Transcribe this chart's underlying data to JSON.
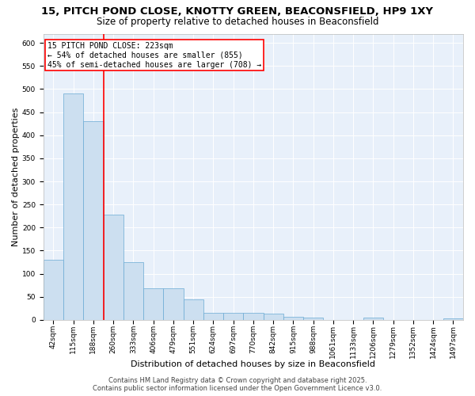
{
  "title": "15, PITCH POND CLOSE, KNOTTY GREEN, BEACONSFIELD, HP9 1XY",
  "subtitle": "Size of property relative to detached houses in Beaconsfield",
  "xlabel": "Distribution of detached houses by size in Beaconsfield",
  "ylabel": "Number of detached properties",
  "bar_labels": [
    "42sqm",
    "115sqm",
    "188sqm",
    "260sqm",
    "333sqm",
    "406sqm",
    "479sqm",
    "551sqm",
    "624sqm",
    "697sqm",
    "770sqm",
    "842sqm",
    "915sqm",
    "988sqm",
    "1061sqm",
    "1133sqm",
    "1206sqm",
    "1279sqm",
    "1352sqm",
    "1424sqm",
    "1497sqm"
  ],
  "bar_values": [
    130,
    490,
    430,
    228,
    125,
    68,
    68,
    44,
    15,
    15,
    15,
    13,
    7,
    5,
    0,
    0,
    5,
    0,
    0,
    0,
    4
  ],
  "bar_color": "#ccdff0",
  "bar_edge_color": "#6aaad4",
  "red_line_x": 2.5,
  "annotation_text": "15 PITCH POND CLOSE: 223sqm\n← 54% of detached houses are smaller (855)\n45% of semi-detached houses are larger (708) →",
  "annotation_box_color": "white",
  "annotation_box_edge_color": "red",
  "red_line_color": "red",
  "ylim": [
    0,
    620
  ],
  "yticks": [
    0,
    50,
    100,
    150,
    200,
    250,
    300,
    350,
    400,
    450,
    500,
    550,
    600
  ],
  "footer_line1": "Contains HM Land Registry data © Crown copyright and database right 2025.",
  "footer_line2": "Contains public sector information licensed under the Open Government Licence v3.0.",
  "title_fontsize": 9.5,
  "subtitle_fontsize": 8.5,
  "axis_label_fontsize": 8,
  "tick_fontsize": 6.5,
  "annotation_fontsize": 7,
  "footer_fontsize": 6
}
